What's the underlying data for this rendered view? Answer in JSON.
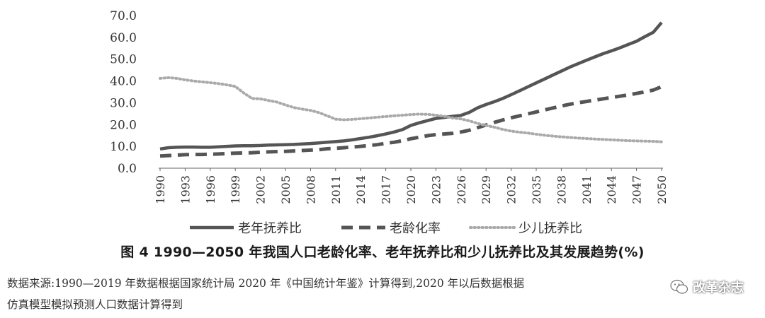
{
  "chart_data": {
    "type": "line",
    "years": [
      1990,
      1991,
      1992,
      1993,
      1994,
      1995,
      1996,
      1997,
      1998,
      1999,
      2000,
      2001,
      2002,
      2003,
      2004,
      2005,
      2006,
      2007,
      2008,
      2009,
      2010,
      2011,
      2012,
      2013,
      2014,
      2015,
      2016,
      2017,
      2018,
      2019,
      2020,
      2021,
      2022,
      2023,
      2024,
      2025,
      2026,
      2027,
      2028,
      2029,
      2030,
      2031,
      2032,
      2033,
      2034,
      2035,
      2036,
      2037,
      2038,
      2039,
      2040,
      2041,
      2042,
      2043,
      2044,
      2045,
      2046,
      2047,
      2048,
      2049,
      2050
    ],
    "x_tick_labels": [
      "1990",
      "1993",
      "1996",
      "1999",
      "2002",
      "2005",
      "2008",
      "2011",
      "2014",
      "2017",
      "2020",
      "2023",
      "2026",
      "2029",
      "2032",
      "2035",
      "2038",
      "2041",
      "2044",
      "2047",
      "2050"
    ],
    "y_tick_labels": [
      "0.0",
      "10.0",
      "20.0",
      "30.0",
      "40.0",
      "50.0",
      "60.0",
      "70.0"
    ],
    "ylim": [
      0,
      70
    ],
    "series": [
      {
        "name": "老年抚养比",
        "style": "solid",
        "color": "#555555",
        "values": [
          8.8,
          9.4,
          9.6,
          9.7,
          9.7,
          9.6,
          9.6,
          9.8,
          10.0,
          10.2,
          10.3,
          10.3,
          10.4,
          10.6,
          10.7,
          10.8,
          10.9,
          11.1,
          11.3,
          11.6,
          11.9,
          12.2,
          12.5,
          13.0,
          13.6,
          14.2,
          14.9,
          15.7,
          16.6,
          17.7,
          19.6,
          20.8,
          21.8,
          22.8,
          23.3,
          23.8,
          24.2,
          25.6,
          27.7,
          29.2,
          30.5,
          32.0,
          33.7,
          35.5,
          37.3,
          39.1,
          40.9,
          42.7,
          44.5,
          46.3,
          47.9,
          49.5,
          51.0,
          52.5,
          53.8,
          55.2,
          56.7,
          58.2,
          60.3,
          62.3,
          66.8
        ]
      },
      {
        "name": "老龄化率",
        "style": "dashed",
        "color": "#555555",
        "values": [
          5.6,
          5.8,
          6.0,
          6.2,
          6.3,
          6.3,
          6.4,
          6.5,
          6.7,
          6.9,
          7.0,
          7.1,
          7.3,
          7.5,
          7.6,
          7.7,
          7.9,
          8.1,
          8.3,
          8.5,
          8.9,
          9.1,
          9.4,
          9.7,
          10.0,
          10.4,
          10.8,
          11.4,
          11.9,
          12.6,
          13.5,
          14.2,
          14.9,
          15.4,
          15.7,
          16.0,
          16.6,
          17.4,
          18.6,
          19.8,
          21.0,
          22.1,
          23.1,
          24.0,
          24.9,
          25.8,
          26.7,
          27.6,
          28.5,
          29.3,
          30.0,
          30.6,
          31.2,
          31.8,
          32.4,
          33.0,
          33.6,
          34.3,
          35.0,
          35.8,
          37.4
        ]
      },
      {
        "name": "少儿抚养比",
        "style": "dotted",
        "color": "#aaaaaa",
        "values": [
          41.2,
          41.5,
          41.2,
          40.5,
          40.0,
          39.6,
          39.2,
          38.8,
          38.2,
          37.5,
          34.5,
          32.0,
          31.8,
          31.0,
          30.3,
          29.0,
          27.8,
          27.1,
          26.5,
          25.5,
          24.0,
          22.5,
          22.2,
          22.4,
          22.7,
          23.0,
          23.4,
          23.7,
          24.0,
          24.3,
          24.6,
          24.8,
          24.7,
          24.3,
          23.8,
          23.0,
          22.6,
          21.7,
          20.5,
          19.6,
          18.8,
          17.8,
          17.0,
          16.5,
          16.1,
          15.6,
          15.1,
          14.7,
          14.4,
          14.1,
          13.8,
          13.6,
          13.4,
          13.2,
          13.0,
          12.8,
          12.6,
          12.5,
          12.4,
          12.3,
          12.1
        ]
      }
    ]
  },
  "caption": "图 4   1990—2050 年我国人口老龄化率、老年抚养比和少儿抚养比及其发展趋势(%)",
  "source_line1": "数据来源:1990—2019 年数据根据国家统计局 2020 年《中国统计年鉴》计算得到,2020 年以后数据根据",
  "source_line2": "仿真模型模拟预测人口数据计算得到",
  "watermark_text": "改革杂志"
}
